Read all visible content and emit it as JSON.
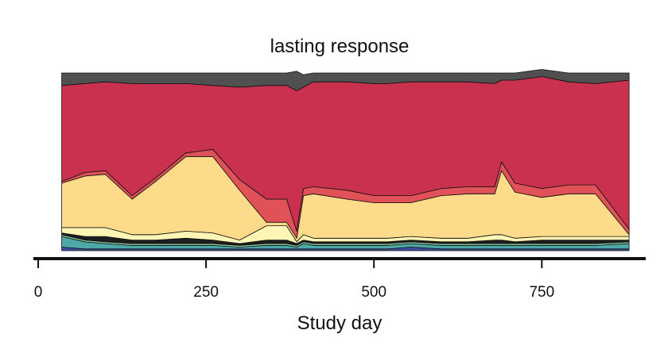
{
  "chart_data": {
    "type": "area",
    "stacked": true,
    "normalized": true,
    "title": "lasting response",
    "xlabel": "Study day",
    "ylabel": "",
    "xlim": [
      0,
      900
    ],
    "ylim": [
      0,
      1
    ],
    "xticks": [
      0,
      250,
      500,
      750
    ],
    "yaxis_visible": false,
    "grid": false,
    "legend": "none",
    "x": [
      35,
      70,
      100,
      140,
      175,
      220,
      260,
      300,
      340,
      370,
      385,
      395,
      410,
      460,
      500,
      520,
      555,
      600,
      640,
      680,
      690,
      710,
      750,
      790,
      830,
      880
    ],
    "series": [
      {
        "color": "#3F4FA0",
        "values": [
          0.02,
          0.01,
          0.01,
          0.01,
          0.01,
          0.01,
          0.01,
          0.01,
          0.01,
          0.01,
          0.01,
          0.01,
          0.01,
          0.01,
          0.01,
          0.01,
          0.02,
          0.01,
          0.01,
          0.01,
          0.01,
          0.01,
          0.01,
          0.01,
          0.01,
          0.01
        ]
      },
      {
        "color": "#4DA9A7",
        "values": [
          0.06,
          0.04,
          0.03,
          0.02,
          0.02,
          0.02,
          0.02,
          0.01,
          0.02,
          0.02,
          0.01,
          0.03,
          0.02,
          0.02,
          0.02,
          0.02,
          0.02,
          0.02,
          0.02,
          0.02,
          0.02,
          0.02,
          0.02,
          0.02,
          0.02,
          0.03
        ]
      },
      {
        "color": "#8FD0A8",
        "values": [
          0.01,
          0.01,
          0.01,
          0.01,
          0.01,
          0.01,
          0.01,
          0.01,
          0.01,
          0.01,
          0.01,
          0.01,
          0.01,
          0.01,
          0.01,
          0.01,
          0.01,
          0.01,
          0.01,
          0.01,
          0.01,
          0.01,
          0.01,
          0.01,
          0.01,
          0.01
        ]
      },
      {
        "color": "#1E1E1E",
        "values": [
          0.01,
          0.02,
          0.03,
          0.02,
          0.02,
          0.03,
          0.02,
          0.01,
          0.02,
          0.02,
          0.01,
          0.01,
          0.01,
          0.01,
          0.01,
          0.01,
          0.01,
          0.01,
          0.01,
          0.02,
          0.02,
          0.01,
          0.02,
          0.02,
          0.02,
          0.01
        ]
      },
      {
        "color": "#FFF5B5",
        "values": [
          0.03,
          0.05,
          0.05,
          0.03,
          0.03,
          0.04,
          0.04,
          0.02,
          0.08,
          0.08,
          0.01,
          0.03,
          0.02,
          0.02,
          0.02,
          0.02,
          0.02,
          0.02,
          0.02,
          0.03,
          0.03,
          0.02,
          0.02,
          0.02,
          0.02,
          0.02
        ]
      },
      {
        "color": "#FDDB8A",
        "values": [
          0.25,
          0.29,
          0.3,
          0.2,
          0.3,
          0.42,
          0.43,
          0.28,
          0.02,
          0.02,
          0.02,
          0.22,
          0.25,
          0.22,
          0.2,
          0.2,
          0.19,
          0.24,
          0.25,
          0.23,
          0.36,
          0.26,
          0.22,
          0.24,
          0.24,
          0.01
        ]
      },
      {
        "color": "#E05257",
        "values": [
          0.01,
          0.02,
          0.02,
          0.02,
          0.02,
          0.02,
          0.04,
          0.06,
          0.13,
          0.13,
          0.04,
          0.04,
          0.04,
          0.05,
          0.04,
          0.04,
          0.04,
          0.04,
          0.04,
          0.04,
          0.05,
          0.05,
          0.05,
          0.05,
          0.05,
          0.03
        ]
      },
      {
        "color": "#C9314E",
        "values": [
          0.54,
          0.5,
          0.5,
          0.63,
          0.53,
          0.39,
          0.36,
          0.52,
          0.64,
          0.64,
          0.79,
          0.57,
          0.59,
          0.61,
          0.63,
          0.63,
          0.64,
          0.6,
          0.59,
          0.58,
          0.46,
          0.58,
          0.63,
          0.58,
          0.57,
          0.84
        ]
      },
      {
        "color": "#505050",
        "values": [
          0.07,
          0.06,
          0.05,
          0.06,
          0.06,
          0.06,
          0.07,
          0.08,
          0.07,
          0.07,
          0.11,
          0.07,
          0.05,
          0.05,
          0.06,
          0.06,
          0.05,
          0.05,
          0.05,
          0.06,
          0.04,
          0.04,
          0.04,
          0.05,
          0.06,
          0.04
        ]
      }
    ]
  }
}
